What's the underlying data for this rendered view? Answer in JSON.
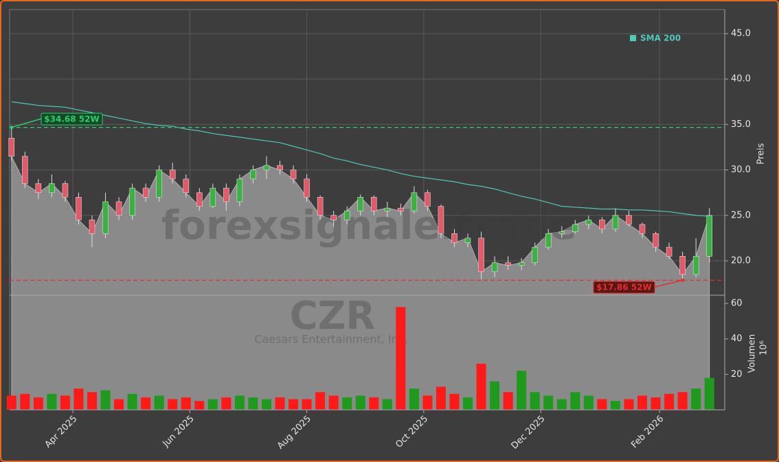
{
  "chart_data": [
    {
      "type": "candlestick",
      "x": [
        0,
        7,
        14,
        21,
        28,
        35,
        42,
        49,
        56,
        63,
        70,
        77,
        84,
        91,
        98,
        105,
        112,
        119,
        126,
        133,
        140,
        147,
        154,
        161,
        168,
        175,
        182,
        189,
        196,
        203,
        210,
        217,
        224,
        231,
        238,
        245,
        252,
        259,
        266,
        273,
        280,
        287,
        294,
        301,
        308,
        315,
        322,
        329,
        336,
        343,
        350,
        357,
        364
      ],
      "open": [
        33.5,
        31.5,
        28.5,
        27.5,
        28.5,
        27,
        24.5,
        23,
        26.5,
        25,
        28,
        27,
        30,
        29,
        27.5,
        26,
        28,
        26.5,
        29,
        30,
        30.5,
        30,
        29,
        27,
        25,
        24.5,
        25.5,
        27,
        25.5,
        25.8,
        25.5,
        27.5,
        26,
        23,
        22,
        22.5,
        18.8,
        19.8,
        19.5,
        19.8,
        21.5,
        23,
        23.2,
        24,
        24.5,
        23.5,
        25,
        24,
        23,
        21.5,
        20.5,
        18.5,
        20.5
      ],
      "high": [
        34.68,
        32,
        29,
        29.5,
        28.8,
        27.5,
        25,
        27.5,
        27,
        28.5,
        28.5,
        30.5,
        30.8,
        29.5,
        28,
        28.5,
        28.5,
        29.5,
        30.5,
        31.5,
        31,
        30.5,
        29.5,
        27.2,
        25.5,
        26,
        27.3,
        27.2,
        26.5,
        26.3,
        28.2,
        27.8,
        26.2,
        23.5,
        23,
        23.2,
        20.5,
        20.5,
        20.3,
        22,
        23.5,
        23.8,
        24.5,
        25,
        24.8,
        25.8,
        25.5,
        24.2,
        23.2,
        22,
        21,
        22.5,
        25.8
      ],
      "low": [
        31,
        28,
        26.8,
        27,
        26.5,
        24,
        21.5,
        22.5,
        24.5,
        24.5,
        26.5,
        26.5,
        28.5,
        27,
        25.5,
        25.8,
        25.5,
        26,
        28.5,
        29,
        29.5,
        28.5,
        26.5,
        24.5,
        23.8,
        24,
        25,
        25,
        24.8,
        25,
        25.2,
        25.5,
        22.5,
        21.5,
        21.5,
        18,
        18.2,
        19,
        19,
        19.5,
        21.2,
        22.5,
        23,
        23.5,
        23,
        23.2,
        23.8,
        22.5,
        21,
        20.2,
        17.86,
        18.2,
        19.8
      ],
      "close": [
        31.5,
        28.5,
        27.5,
        28.5,
        27,
        24.5,
        23,
        26.5,
        25,
        28,
        27,
        30,
        29,
        27.5,
        26,
        28,
        26.5,
        29,
        30,
        30.5,
        30,
        29,
        27,
        25,
        24.5,
        25.5,
        27,
        25.5,
        25.8,
        25.5,
        27.5,
        26,
        23,
        22,
        22.5,
        18.8,
        19.8,
        19.5,
        19.8,
        21.5,
        23,
        23.2,
        24,
        24.5,
        23.5,
        25,
        24,
        23,
        21.5,
        20.5,
        18.5,
        20.5,
        25
      ],
      "up_color": "#3cb043",
      "down_color": "#e05a6a",
      "area_color": "#8a8a8a",
      "ylim": [
        16.22,
        47.64
      ],
      "yticks": [
        {
          "value": 20,
          "label": "20.0"
        },
        {
          "value": 25,
          "label": "25.0"
        },
        {
          "value": 30,
          "label": "30.0"
        },
        {
          "value": 35,
          "label": "35.0"
        },
        {
          "value": 40,
          "label": "40.0"
        },
        {
          "value": 45,
          "label": "45.0"
        }
      ],
      "xlim": [
        -1,
        372
      ],
      "ylabel": "Preis",
      "grid": true,
      "legend": "upper right",
      "series": [
        {
          "name": "SMA 200",
          "type": "line",
          "color": "#4fc9b8",
          "values": [
            37.5,
            37.3,
            37.1,
            37.0,
            36.9,
            36.6,
            36.3,
            36.0,
            35.7,
            35.4,
            35.1,
            34.9,
            34.8,
            34.5,
            34.3,
            34.0,
            33.8,
            33.6,
            33.4,
            33.2,
            33.0,
            32.6,
            32.2,
            31.8,
            31.3,
            31.0,
            30.6,
            30.3,
            30.0,
            29.6,
            29.3,
            29.1,
            28.9,
            28.7,
            28.4,
            28.2,
            27.9,
            27.5,
            27.1,
            26.8,
            26.4,
            26.0,
            25.9,
            25.8,
            25.7,
            25.7,
            25.6,
            25.6,
            25.5,
            25.4,
            25.2,
            25.0,
            24.9
          ]
        }
      ],
      "annotations": [
        {
          "label": "$34.68 52W",
          "value": 34.68,
          "color": "#2ecc71"
        },
        {
          "label": "$17.86 52W",
          "value": 17.86,
          "color": "#e03030"
        }
      ],
      "watermarks": [
        "forexsignale.trade",
        "CZR",
        "Caesars Entertainment, Inc."
      ]
    },
    {
      "type": "bar",
      "x": [
        0,
        7,
        14,
        21,
        28,
        35,
        42,
        49,
        56,
        63,
        70,
        77,
        84,
        91,
        98,
        105,
        112,
        119,
        126,
        133,
        140,
        147,
        154,
        161,
        168,
        175,
        182,
        189,
        196,
        203,
        210,
        217,
        224,
        231,
        238,
        245,
        252,
        259,
        266,
        273,
        280,
        287,
        294,
        301,
        308,
        315,
        322,
        329,
        336,
        343,
        350,
        357,
        364
      ],
      "values": [
        8,
        9,
        7,
        9,
        8,
        12,
        10,
        11,
        6,
        9,
        7,
        8,
        6,
        7,
        5,
        6,
        7,
        8,
        7,
        6,
        7,
        6,
        6,
        10,
        8,
        7,
        8,
        7,
        6,
        58,
        12,
        8,
        13,
        9,
        7,
        26,
        16,
        10,
        22,
        10,
        8,
        6,
        10,
        8,
        6,
        5,
        6,
        8,
        7,
        9,
        10,
        12,
        18
      ],
      "up_color": "#1f9a1f",
      "down_color": "#ff1a1a",
      "ylim": [
        0,
        64.66
      ],
      "yticks": [
        20,
        40,
        60
      ],
      "xlim": [
        -1,
        372
      ],
      "xticks": [
        {
          "value": 32,
          "label": "Apr 2025"
        },
        {
          "value": 93,
          "label": "Jun 2025"
        },
        {
          "value": 154,
          "label": "Aug 2025"
        },
        {
          "value": 215,
          "label": "Oct 2025"
        },
        {
          "value": 276,
          "label": "Dec 2025"
        },
        {
          "value": 338,
          "label": "Feb 2026"
        }
      ],
      "ylabel": "Volumen",
      "scale_label": "10⁶"
    }
  ]
}
